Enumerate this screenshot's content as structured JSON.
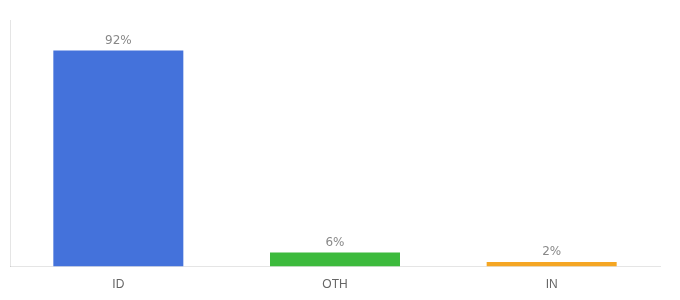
{
  "chart_data": {
    "type": "bar",
    "categories": [
      "ID",
      "OTH",
      "IN"
    ],
    "values": [
      92,
      6,
      2
    ],
    "value_labels": [
      "92%",
      "6%",
      "2%"
    ],
    "colors": [
      "#4472db",
      "#3dba3d",
      "#f5a623"
    ],
    "ylim": [
      0,
      105
    ],
    "grid": false,
    "data_labels": true,
    "tick_labels": "x"
  }
}
